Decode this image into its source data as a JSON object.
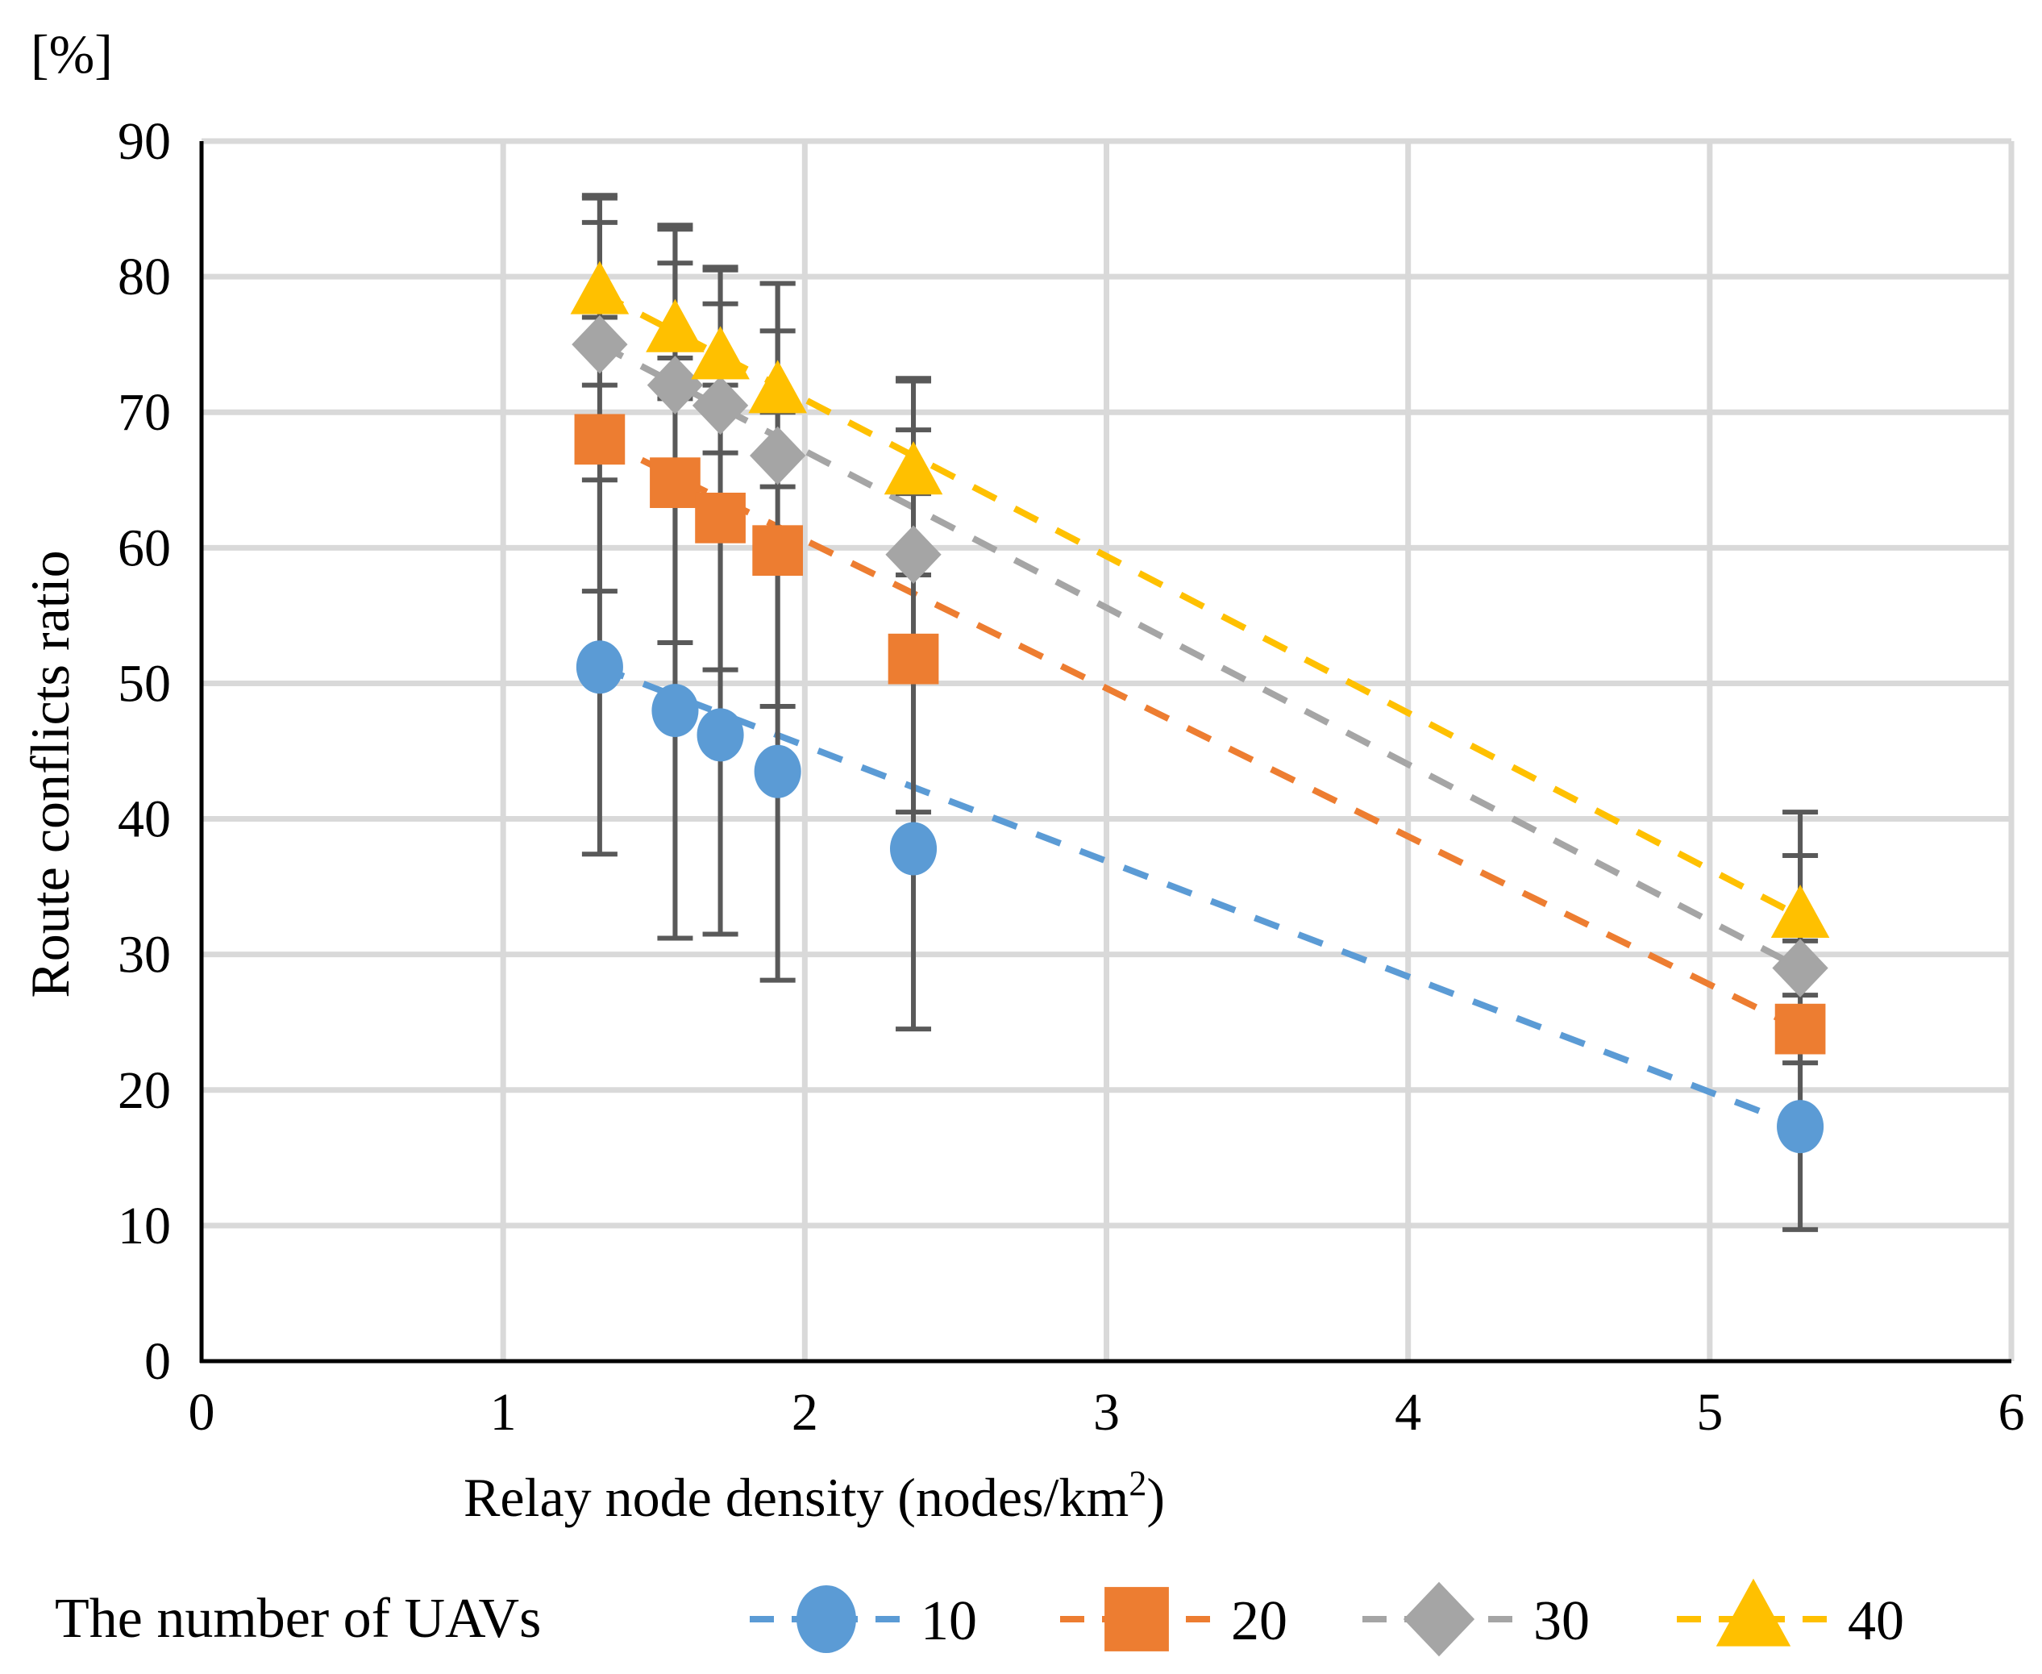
{
  "chart_data": {
    "type": "scatter",
    "ylabel": "Route conflicts ratio",
    "yunit": "[%]",
    "xlabel": "Relay node density (nodes/km",
    "xlabel_superscript": "2",
    "xlabel_suffix": ")",
    "xlim": [
      0,
      6
    ],
    "ylim": [
      0,
      90
    ],
    "xticks": [
      0,
      1,
      2,
      3,
      4,
      5,
      6
    ],
    "yticks": [
      0,
      10,
      20,
      30,
      40,
      50,
      60,
      70,
      80,
      90
    ],
    "grid": true,
    "legend_placement": "bottom",
    "legend_title": "The number of UAVs",
    "x": [
      1.32,
      1.57,
      1.72,
      1.91,
      2.36,
      5.3
    ],
    "series": [
      {
        "name": "10",
        "marker": "circle",
        "color": "#5B9BD5",
        "values": [
          51.2,
          48.0,
          46.2,
          43.5,
          37.8,
          17.3
        ],
        "error_upper": [
          65.0,
          64.8,
          61.0,
          58.9,
          51.0,
          25.0
        ],
        "error_lower": [
          37.4,
          31.2,
          31.5,
          28.1,
          24.5,
          9.7
        ]
      },
      {
        "name": "20",
        "marker": "square",
        "color": "#ED7D31",
        "values": [
          68.0,
          64.8,
          62.2,
          59.8,
          51.8,
          24.5
        ],
        "error_upper": [
          84.0,
          81.0,
          78.0,
          76.0,
          68.7,
          32.5
        ],
        "error_lower": [
          56.8,
          53.0,
          51.0,
          48.3,
          40.5,
          22.0
        ]
      },
      {
        "name": "30",
        "marker": "diamond",
        "color": "#A5A5A5",
        "values": [
          75.0,
          72.0,
          70.5,
          66.8,
          59.5,
          29.0
        ],
        "error_upper": [
          85.8,
          83.5,
          80.5,
          79.5,
          72.3,
          37.3
        ],
        "error_lower": [
          72.0,
          71.0,
          67.0,
          64.5,
          58.0,
          27.0
        ]
      },
      {
        "name": "40",
        "marker": "triangle",
        "color": "#FFC000",
        "values": [
          78.8,
          76.0,
          74.0,
          71.5,
          65.5,
          32.8
        ],
        "error_upper": [
          86.0,
          83.8,
          80.7,
          79.5,
          72.5,
          40.5
        ],
        "error_lower": [
          77.0,
          74.0,
          72.0,
          70.0,
          64.0,
          31.0
        ]
      }
    ]
  }
}
